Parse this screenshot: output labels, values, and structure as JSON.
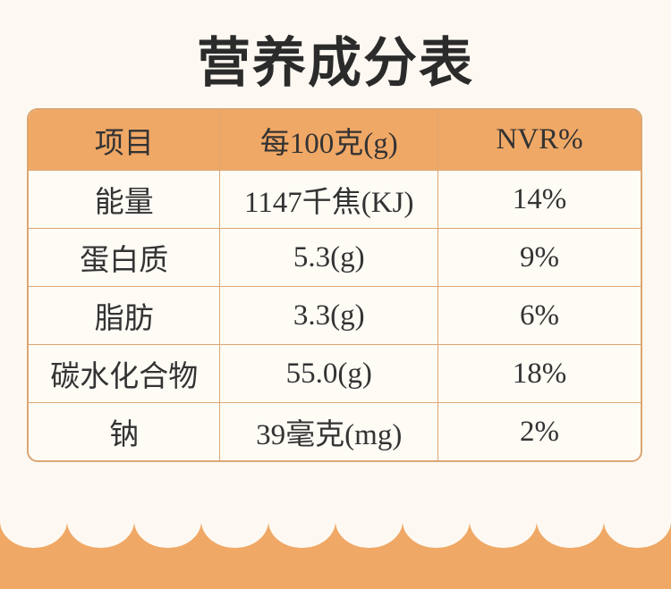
{
  "title": "营养成分表",
  "table": {
    "header": [
      "项目",
      "每100克(g)",
      "NVR%"
    ],
    "rows": [
      [
        "能量",
        "1147千焦(KJ)",
        "14%"
      ],
      [
        "蛋白质",
        "5.3(g)",
        "9%"
      ],
      [
        "脂肪",
        "3.3(g)",
        "6%"
      ],
      [
        "碳水化合物",
        "55.0(g)",
        "18%"
      ],
      [
        "钠",
        "39毫克(mg)",
        "2%"
      ]
    ]
  }
}
